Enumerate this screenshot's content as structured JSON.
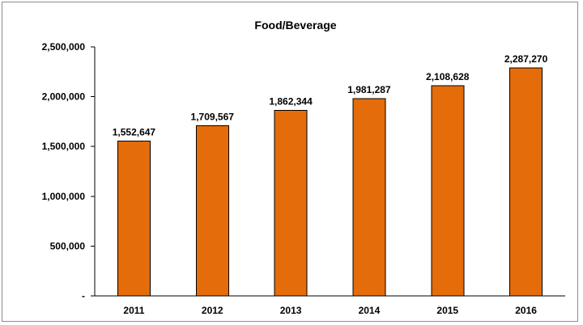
{
  "chart_data": {
    "type": "bar",
    "title": "Food/Beverage",
    "xlabel": "",
    "ylabel": "",
    "categories": [
      "2011",
      "2012",
      "2013",
      "2014",
      "2015",
      "2016"
    ],
    "values": [
      1552647,
      1709567,
      1862344,
      1981287,
      2108628,
      2287270
    ],
    "data_labels": [
      "1,552,647",
      "1,709,567",
      "1,862,344",
      "1,981,287",
      "2,108,628",
      "2,287,270"
    ],
    "ylim": [
      0,
      2500000
    ],
    "yticks": [
      0,
      500000,
      1000000,
      1500000,
      2000000,
      2500000
    ],
    "ytick_labels": [
      "-",
      "500,000",
      "1,000,000",
      "1,500,000",
      "2,000,000",
      "2,500,000"
    ],
    "grid": false,
    "legend": "none",
    "bar_color": "#E46C0A"
  }
}
